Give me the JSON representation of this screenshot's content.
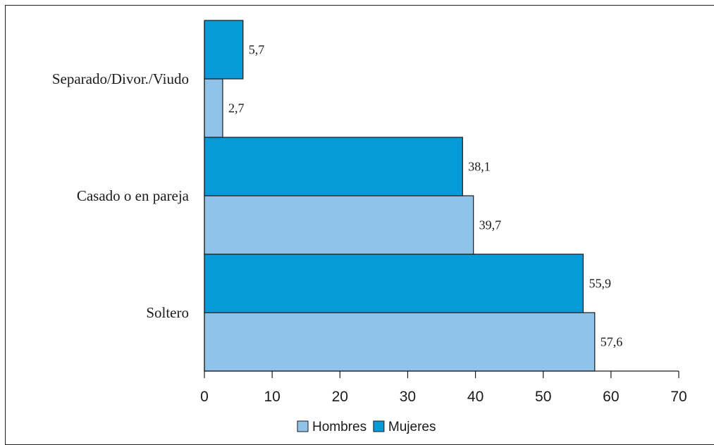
{
  "chart_data": {
    "type": "bar",
    "orientation": "horizontal",
    "categories": [
      "Soltero",
      "Casado o en pareja",
      "Separado/Divor./Viudo"
    ],
    "series": [
      {
        "name": "Hombres",
        "values": [
          57.6,
          39.7,
          2.7
        ],
        "labels": [
          "57,6",
          "39,7",
          "2,7"
        ],
        "color": "#8fc3ea"
      },
      {
        "name": "Mujeres",
        "values": [
          55.9,
          38.1,
          5.7
        ],
        "labels": [
          "55,9",
          "38,1",
          "5,7"
        ],
        "color": "#079ad8"
      }
    ],
    "x_ticks": [
      0,
      10,
      20,
      30,
      40,
      50,
      60,
      70
    ],
    "xlim": [
      0,
      70
    ],
    "grid": false,
    "legend_position": "bottom",
    "bar_outline_color": "#1a1a1a",
    "axis_color": "#1a1a1a"
  }
}
